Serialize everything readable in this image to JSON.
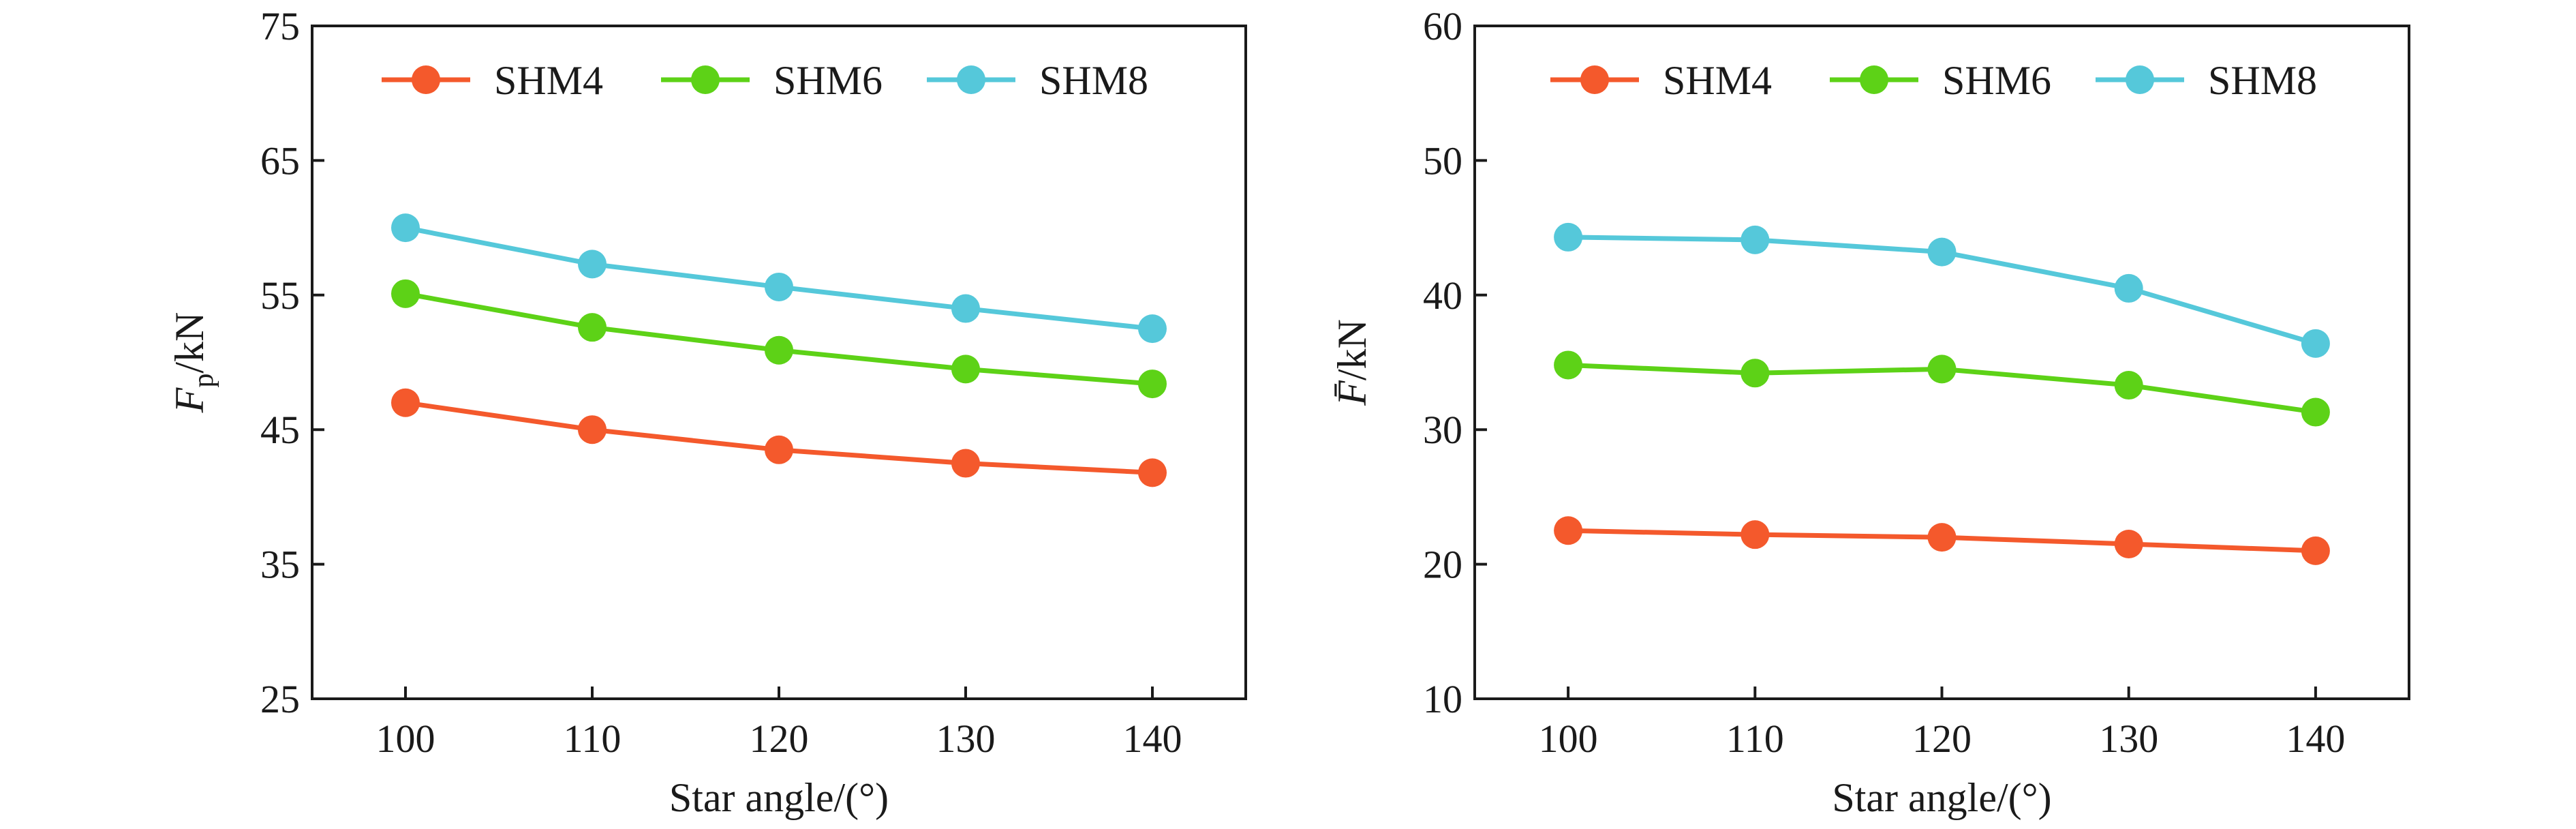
{
  "chart_data": [
    {
      "type": "line",
      "xlabel": "Star angle/(°)",
      "ylabel": {
        "main": "F",
        "sub": "p",
        "rest": "/kN"
      },
      "x": [
        100,
        110,
        120,
        130,
        140
      ],
      "xlim": [
        95,
        145
      ],
      "ylim": [
        25,
        75
      ],
      "xticks": [
        100,
        110,
        120,
        130,
        140
      ],
      "yticks": [
        25,
        35,
        45,
        55,
        65,
        75
      ],
      "grid": false,
      "legend_position": "top",
      "series": [
        {
          "name": "SHM4",
          "color": "#f4592c",
          "values": [
            47.0,
            45.0,
            43.5,
            42.5,
            41.8
          ]
        },
        {
          "name": "SHM6",
          "color": "#5dd217",
          "values": [
            55.1,
            52.6,
            50.9,
            49.5,
            48.4
          ]
        },
        {
          "name": "SHM8",
          "color": "#55c8da",
          "values": [
            60.0,
            57.3,
            55.6,
            54.0,
            52.5
          ]
        }
      ]
    },
    {
      "type": "line",
      "xlabel": "Star angle/(°)",
      "ylabel": {
        "main": "F̄",
        "sub": "",
        "rest": "/kN"
      },
      "x": [
        100,
        110,
        120,
        130,
        140
      ],
      "xlim": [
        95,
        145
      ],
      "ylim": [
        10,
        60
      ],
      "xticks": [
        100,
        110,
        120,
        130,
        140
      ],
      "yticks": [
        10,
        20,
        30,
        40,
        50,
        60
      ],
      "grid": false,
      "legend_position": "top",
      "series": [
        {
          "name": "SHM4",
          "color": "#f4592c",
          "values": [
            22.5,
            22.2,
            22.0,
            21.5,
            21.0
          ]
        },
        {
          "name": "SHM6",
          "color": "#5dd217",
          "values": [
            34.8,
            34.2,
            34.5,
            33.3,
            31.3
          ]
        },
        {
          "name": "SHM8",
          "color": "#55c8da",
          "values": [
            44.3,
            44.1,
            43.2,
            40.5,
            36.4
          ]
        }
      ]
    }
  ]
}
